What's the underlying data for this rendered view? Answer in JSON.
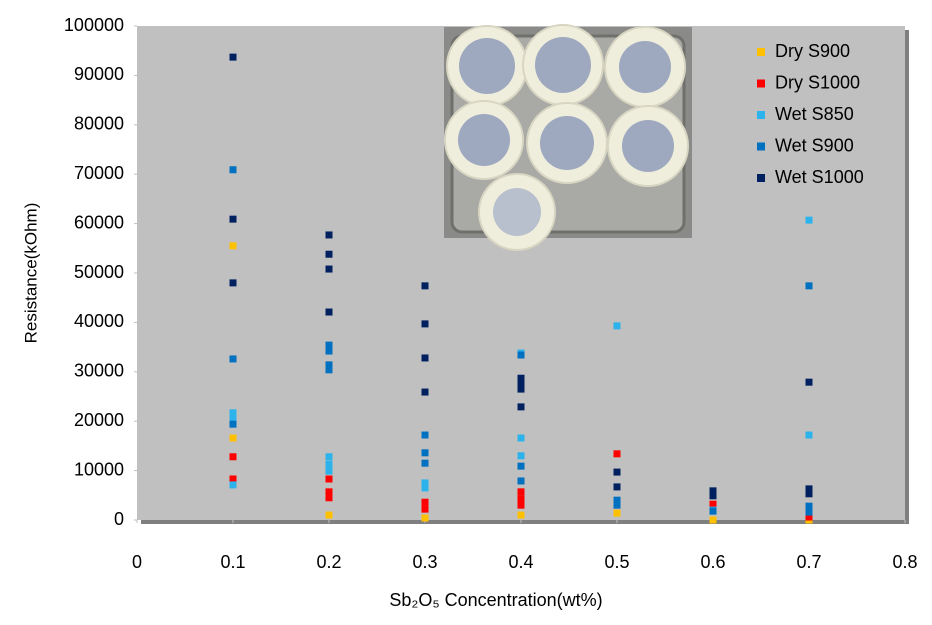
{
  "chart_data": {
    "type": "scatter",
    "xlabel": "Sb₂O₅ Concentration(wt%)",
    "ylabel": "Resistance(kOhm)",
    "xlim": [
      0,
      0.8
    ],
    "xticks": [
      0,
      0.1,
      0.2,
      0.3,
      0.4,
      0.5,
      0.6,
      0.7,
      0.8
    ],
    "ylim": [
      0,
      100000
    ],
    "yticks": [
      0,
      10000,
      20000,
      30000,
      40000,
      50000,
      60000,
      70000,
      80000,
      90000,
      100000
    ],
    "legend": "upper right",
    "series": [
      {
        "name": "Dry S900",
        "color": "#ffc000",
        "x": [
          0.1,
          0.1,
          0.2,
          0.3,
          0.4,
          0.5,
          0.6,
          0.7
        ],
        "values": [
          55500,
          16600,
          1000,
          400,
          1000,
          1400,
          0,
          0
        ]
      },
      {
        "name": "Dry S1000",
        "color": "#ff0000",
        "x": [
          0.1,
          0.1,
          0.2,
          0.2,
          0.2,
          0.3,
          0.3,
          0.4,
          0.4,
          0.4,
          0.5,
          0.6,
          0.7
        ],
        "values": [
          12800,
          8300,
          8300,
          5700,
          4500,
          3600,
          2200,
          5700,
          4300,
          3000,
          13400,
          3200,
          600
        ]
      },
      {
        "name": "Wet S850",
        "color": "#2db3ec",
        "x": [
          0.1,
          0.1,
          0.1,
          0.2,
          0.2,
          0.2,
          0.3,
          0.3,
          0.4,
          0.4,
          0.4,
          0.5,
          0.5,
          0.6,
          0.7,
          0.7
        ],
        "values": [
          21700,
          20400,
          7100,
          12800,
          11300,
          9900,
          7500,
          6500,
          33800,
          16600,
          13000,
          39300,
          4000,
          2000,
          60700,
          17200
        ]
      },
      {
        "name": "Wet S900",
        "color": "#0070c0",
        "x": [
          0.1,
          0.1,
          0.1,
          0.2,
          0.2,
          0.2,
          0.2,
          0.3,
          0.3,
          0.3,
          0.4,
          0.4,
          0.4,
          0.5,
          0.5,
          0.6,
          0.7,
          0.7,
          0.7
        ],
        "values": [
          70900,
          32600,
          19400,
          35400,
          34200,
          31400,
          30400,
          17200,
          13600,
          11500,
          33400,
          10900,
          7900,
          4000,
          3000,
          1800,
          47400,
          2800,
          1600
        ]
      },
      {
        "name": "Wet S1000",
        "color": "#002060",
        "x": [
          0.1,
          0.1,
          0.1,
          0.2,
          0.2,
          0.2,
          0.2,
          0.3,
          0.3,
          0.3,
          0.3,
          0.4,
          0.4,
          0.4,
          0.4,
          0.5,
          0.5,
          0.6,
          0.6,
          0.7,
          0.7,
          0.7
        ],
        "values": [
          93700,
          60900,
          48000,
          57700,
          53800,
          50800,
          42100,
          47400,
          39700,
          32800,
          25900,
          28700,
          27700,
          26500,
          22900,
          9700,
          6700,
          5900,
          4900,
          27900,
          6300,
          5300
        ]
      }
    ]
  }
}
